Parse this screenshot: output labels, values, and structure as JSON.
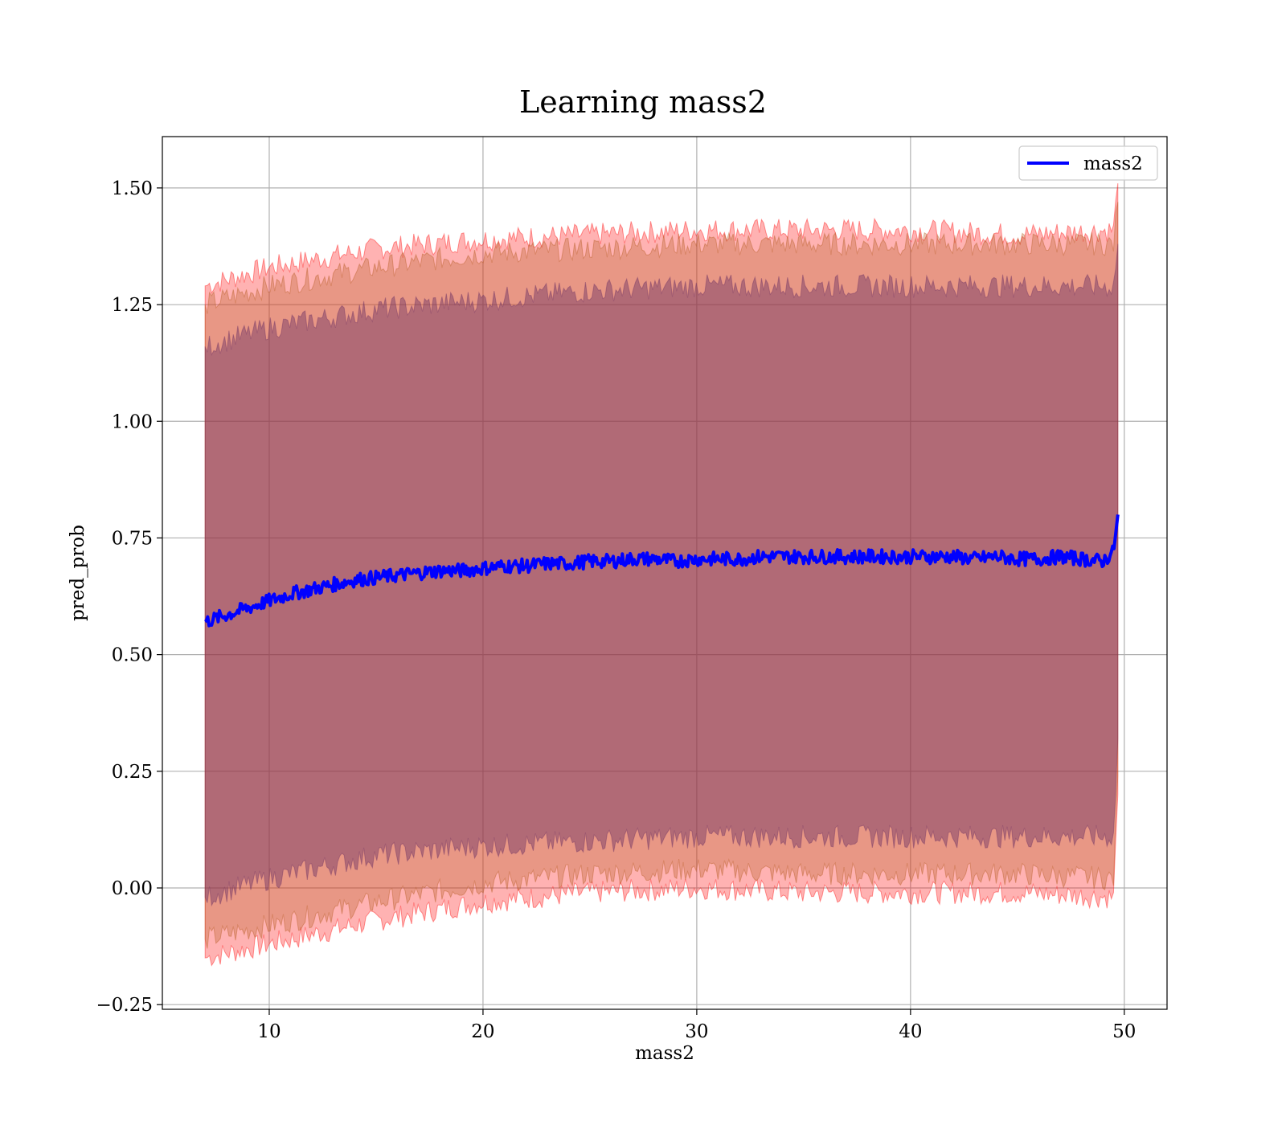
{
  "chart_data": {
    "type": "line",
    "title": "Learning mass2",
    "xlabel": "mass2",
    "ylabel": "pred_prob",
    "xlim": [
      5,
      52
    ],
    "ylim": [
      -0.26,
      1.61
    ],
    "xticks": [
      10,
      20,
      30,
      40,
      50
    ],
    "xtick_labels": [
      "10",
      "20",
      "30",
      "40",
      "50"
    ],
    "yticks": [
      -0.25,
      0.0,
      0.25,
      0.5,
      0.75,
      1.0,
      1.25,
      1.5
    ],
    "ytick_labels": [
      "−0.25",
      "0.00",
      "0.25",
      "0.50",
      "0.75",
      "1.00",
      "1.25",
      "1.50"
    ],
    "grid": true,
    "legend": {
      "placement": "top-right",
      "entries": [
        "mass2"
      ]
    },
    "series": [
      {
        "name": "mass2",
        "color": "#0000ff",
        "x": [
          7.0,
          8.0,
          9.0,
          10.0,
          11.0,
          12.0,
          13.0,
          14.0,
          15.0,
          16.0,
          17.0,
          18.0,
          19.0,
          20.0,
          21.0,
          22.0,
          23.0,
          24.0,
          25.0,
          26.0,
          27.0,
          28.0,
          29.0,
          30.0,
          31.0,
          32.0,
          33.0,
          34.0,
          35.0,
          36.0,
          37.0,
          38.0,
          39.0,
          40.0,
          41.0,
          42.0,
          43.0,
          44.0,
          45.0,
          46.0,
          47.0,
          48.0,
          49.0,
          49.5,
          49.7
        ],
        "y": [
          0.57,
          0.585,
          0.6,
          0.615,
          0.63,
          0.64,
          0.65,
          0.66,
          0.665,
          0.67,
          0.675,
          0.68,
          0.68,
          0.685,
          0.69,
          0.69,
          0.695,
          0.695,
          0.7,
          0.7,
          0.705,
          0.705,
          0.7,
          0.705,
          0.705,
          0.705,
          0.71,
          0.71,
          0.71,
          0.71,
          0.71,
          0.71,
          0.71,
          0.71,
          0.71,
          0.71,
          0.705,
          0.71,
          0.705,
          0.705,
          0.71,
          0.705,
          0.7,
          0.72,
          0.8
        ]
      }
    ],
    "bands": [
      {
        "color": "#ff0000",
        "opacity": 0.3,
        "x": [
          7.0,
          10.0,
          15.0,
          20.0,
          25.0,
          30.0,
          35.0,
          40.0,
          45.0,
          49.5,
          49.7
        ],
        "upper": [
          1.29,
          1.33,
          1.37,
          1.39,
          1.4,
          1.41,
          1.41,
          1.41,
          1.4,
          1.41,
          1.51
        ],
        "lower": [
          -0.15,
          -0.12,
          -0.07,
          -0.03,
          -0.01,
          0.0,
          -0.01,
          -0.01,
          -0.01,
          -0.02,
          0.2
        ]
      },
      {
        "color": "#b45a1e",
        "opacity": 0.3,
        "x": [
          7.0,
          10.0,
          15.0,
          20.0,
          25.0,
          30.0,
          35.0,
          40.0,
          45.0,
          49.5,
          49.7
        ],
        "upper": [
          1.25,
          1.29,
          1.33,
          1.36,
          1.37,
          1.38,
          1.38,
          1.38,
          1.38,
          1.38,
          1.47
        ],
        "lower": [
          -0.11,
          -0.08,
          -0.03,
          0.01,
          0.03,
          0.04,
          0.03,
          0.03,
          0.03,
          0.02,
          0.24
        ]
      },
      {
        "color": "#6e3264",
        "opacity": 0.45,
        "x": [
          7.0,
          10.0,
          15.0,
          20.0,
          25.0,
          30.0,
          35.0,
          40.0,
          45.0,
          49.5,
          49.7
        ],
        "upper": [
          1.16,
          1.2,
          1.24,
          1.26,
          1.28,
          1.29,
          1.29,
          1.29,
          1.29,
          1.29,
          1.38
        ],
        "lower": [
          -0.02,
          0.02,
          0.07,
          0.09,
          0.1,
          0.11,
          0.11,
          0.11,
          0.11,
          0.11,
          0.32
        ]
      }
    ]
  }
}
